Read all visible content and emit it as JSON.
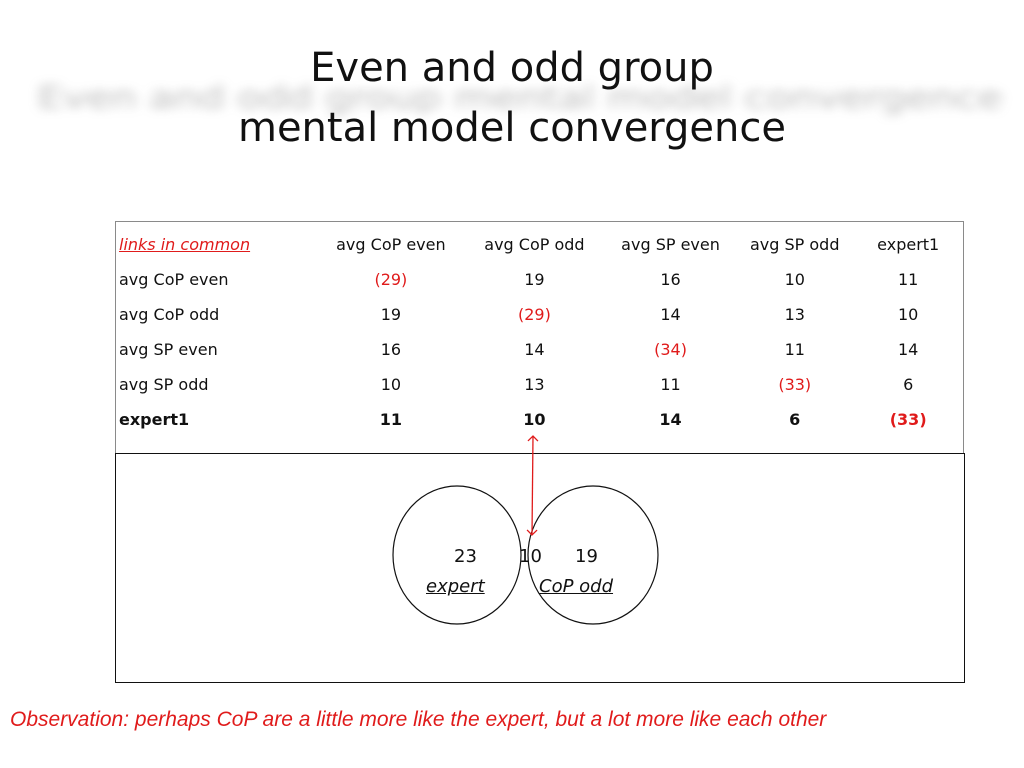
{
  "slide": {
    "title_line1": "Even and odd group",
    "title_line2": "mental model convergence"
  },
  "table": {
    "corner_label": "links in common",
    "columns": [
      "avg CoP even",
      "avg CoP odd",
      "avg SP even",
      "avg SP odd",
      "expert1"
    ],
    "rows": [
      {
        "label": "avg CoP even",
        "values": [
          "(29)",
          "19",
          "16",
          "10",
          "11"
        ]
      },
      {
        "label": "avg CoP odd",
        "values": [
          "19",
          "(29)",
          "14",
          "13",
          "10"
        ]
      },
      {
        "label": "avg SP even",
        "values": [
          "16",
          "14",
          "(34)",
          "11",
          "14"
        ]
      },
      {
        "label": "avg SP odd",
        "values": [
          "10",
          "13",
          "11",
          "(33)",
          "6"
        ]
      },
      {
        "label": "expert1",
        "values": [
          "11",
          "10",
          "14",
          "6",
          "(33)"
        ]
      }
    ]
  },
  "venn": {
    "left_count": "23",
    "overlap_count": "10",
    "right_count": "19",
    "left_name": "expert",
    "right_name": "CoP odd"
  },
  "observation": "Observation: perhaps  CoP are a little more like the expert, but a lot more like each other",
  "colors": {
    "accent": "#e01b1b",
    "text": "#111111"
  }
}
